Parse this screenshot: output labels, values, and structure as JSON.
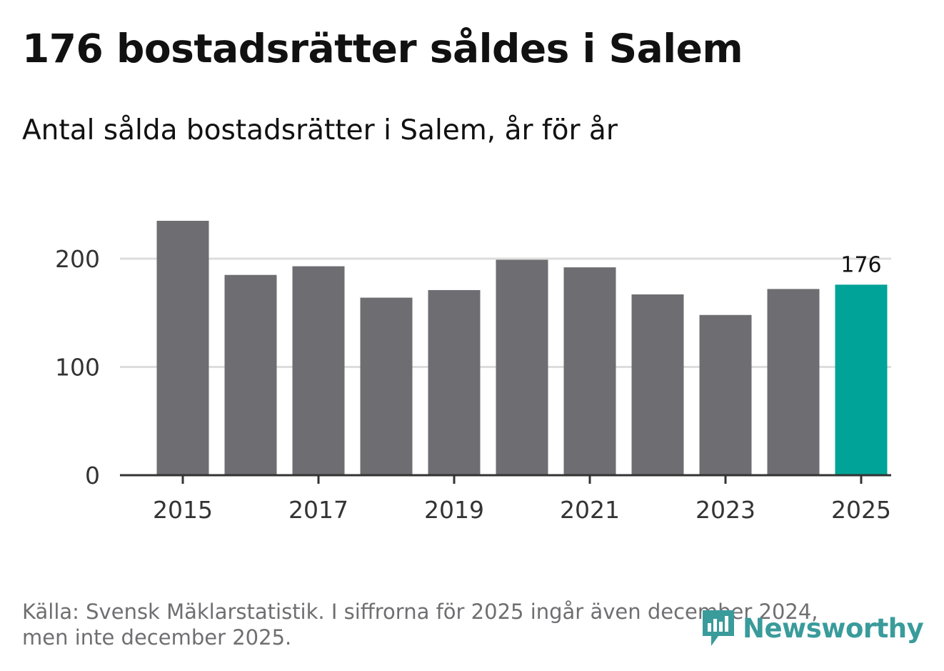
{
  "title": "176 bostadsrätter såldes i Salem",
  "subtitle": "Antal sålda bostadsrätter i Salem, år för år",
  "footer": {
    "line1": "Källa: Svensk Mäklarstatistik. I siffrorna för 2025 ingår även december 2024,",
    "line2": "men inte december 2025."
  },
  "logo": {
    "text": "Newsworthy",
    "icon": "newsworthy-logo-icon"
  },
  "colors": {
    "bar": "#6e6d72",
    "highlight": "#00a398",
    "grid": "#dddddd",
    "axis": "#333333",
    "logo": "#3a9b9b"
  },
  "chart_data": {
    "type": "bar",
    "title": "176 bostadsrätter såldes i Salem",
    "subtitle": "Antal sålda bostadsrätter i Salem, år för år",
    "categories": [
      "2015",
      "2016",
      "2017",
      "2018",
      "2019",
      "2020",
      "2021",
      "2022",
      "2023",
      "2024",
      "2025"
    ],
    "values": [
      235,
      185,
      193,
      164,
      171,
      199,
      192,
      167,
      148,
      172,
      176
    ],
    "highlight_index": 10,
    "highlight_label": "176",
    "x_tick_labels": [
      "2015",
      "2017",
      "2019",
      "2021",
      "2023",
      "2025"
    ],
    "y_ticks": [
      0,
      100,
      200
    ],
    "y_tick_labels": [
      "0",
      "100",
      "200"
    ],
    "ylim": [
      0,
      240
    ],
    "xlabel": "",
    "ylabel": "",
    "grid": true
  }
}
